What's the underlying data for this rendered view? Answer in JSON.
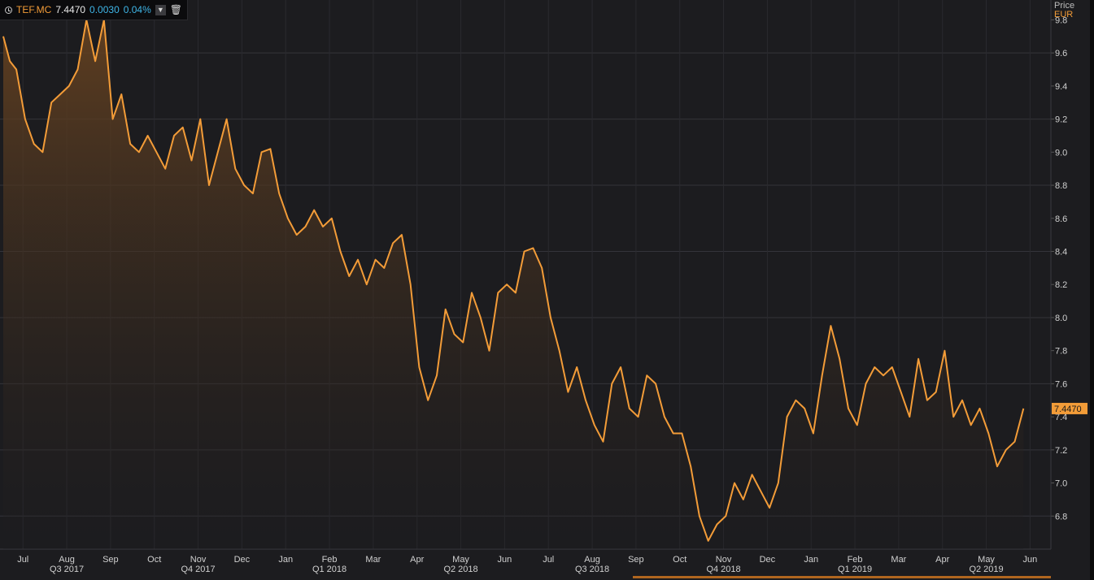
{
  "legend": {
    "ticker": "TEF.MC",
    "last": "7.4470",
    "change": "0.0030",
    "change_pct": "0.04%",
    "dropdown_icon": "chevron-down-icon",
    "delete_icon": "trash-icon"
  },
  "axis": {
    "price_label": "Price",
    "currency": "EUR",
    "last_value_tag": "7.4470"
  },
  "colors": {
    "background": "#1c1c1f",
    "line": "#f39c38",
    "grid": "#34343a",
    "change": "#3fb6e8"
  },
  "chart_data": {
    "type": "area",
    "ylim": [
      6.6,
      9.92
    ],
    "y_ticks": [
      "9.8",
      "9.6",
      "9.4",
      "9.2",
      "9.0",
      "8.8",
      "8.6",
      "8.4",
      "8.2",
      "8.0",
      "7.8",
      "7.6",
      "7.4",
      "7.2",
      "7.0",
      "6.8"
    ],
    "months": [
      "Jul",
      "Aug",
      "Sep",
      "Oct",
      "Nov",
      "Dec",
      "Jan",
      "Feb",
      "Mar",
      "Apr",
      "May",
      "Jun",
      "Jul",
      "Aug",
      "Sep",
      "Oct",
      "Nov",
      "Dec",
      "Jan",
      "Feb",
      "Mar",
      "Apr",
      "May",
      "Jun"
    ],
    "quarters": [
      "Q3 2017",
      "Q4 2017",
      "Q1 2018",
      "Q2 2018",
      "Q3 2018",
      "Q4 2018",
      "Q1 2019",
      "Q2 2019"
    ],
    "series": [
      {
        "name": "TEF.MC",
        "x": [
          0,
          0.15,
          0.3,
          0.5,
          0.7,
          0.9,
          1.1,
          1.3,
          1.5,
          1.7,
          1.9,
          2.1,
          2.3,
          2.5,
          2.7,
          2.9,
          3.1,
          3.3,
          3.5,
          3.7,
          3.9,
          4.1,
          4.3,
          4.5,
          4.7,
          4.9,
          5.1,
          5.3,
          5.5,
          5.7,
          5.9,
          6.1,
          6.3,
          6.5,
          6.7,
          6.9,
          7.1,
          7.3,
          7.5,
          7.7,
          7.9,
          8.1,
          8.3,
          8.5,
          8.7,
          8.9,
          9.1,
          9.3,
          9.5,
          9.7,
          9.9,
          10.1,
          10.3,
          10.5,
          10.7,
          10.9,
          11.1,
          11.3,
          11.5,
          11.7,
          11.9,
          12.1,
          12.3,
          12.5,
          12.7,
          12.9,
          13.1,
          13.3,
          13.5,
          13.7,
          13.9,
          14.1,
          14.3,
          14.5,
          14.7,
          14.9,
          15.1,
          15.3,
          15.5,
          15.7,
          15.9,
          16.1,
          16.3,
          16.5,
          16.7,
          16.9,
          17.1,
          17.3,
          17.5,
          17.7,
          17.9,
          18.1,
          18.3,
          18.5,
          18.7,
          18.9,
          19.1,
          19.3,
          19.5,
          19.7,
          19.9,
          20.1,
          20.3,
          20.5,
          20.7,
          20.9,
          21.1,
          21.3,
          21.5,
          21.7,
          21.9,
          22.1,
          22.3,
          22.5,
          22.7,
          22.9,
          23.1,
          23.3
        ],
        "values": [
          9.7,
          9.55,
          9.5,
          9.2,
          9.05,
          9.0,
          9.3,
          9.35,
          9.4,
          9.5,
          9.8,
          9.55,
          9.8,
          9.2,
          9.35,
          9.05,
          9.0,
          9.1,
          9.0,
          8.9,
          9.1,
          9.15,
          8.95,
          9.2,
          8.8,
          9.0,
          9.2,
          8.9,
          8.8,
          8.75,
          9.0,
          9.02,
          8.75,
          8.6,
          8.5,
          8.55,
          8.65,
          8.55,
          8.6,
          8.4,
          8.25,
          8.35,
          8.2,
          8.35,
          8.3,
          8.45,
          8.5,
          8.2,
          7.7,
          7.5,
          7.65,
          8.05,
          7.9,
          7.85,
          8.15,
          8.0,
          7.8,
          8.15,
          8.2,
          8.15,
          8.4,
          8.42,
          8.3,
          8.0,
          7.8,
          7.55,
          7.7,
          7.5,
          7.35,
          7.25,
          7.6,
          7.7,
          7.45,
          7.4,
          7.65,
          7.6,
          7.4,
          7.3,
          7.3,
          7.1,
          6.8,
          6.65,
          6.75,
          6.8,
          7.0,
          6.9,
          7.05,
          6.95,
          6.85,
          7.0,
          7.4,
          7.5,
          7.45,
          7.3,
          7.65,
          7.95,
          7.75,
          7.45,
          7.35,
          7.6,
          7.7,
          7.65,
          7.7,
          7.55,
          7.4,
          7.75,
          7.5,
          7.55,
          7.8,
          7.4,
          7.5,
          7.35,
          7.45,
          7.3,
          7.1,
          7.2,
          7.25,
          7.45
        ]
      }
    ]
  }
}
